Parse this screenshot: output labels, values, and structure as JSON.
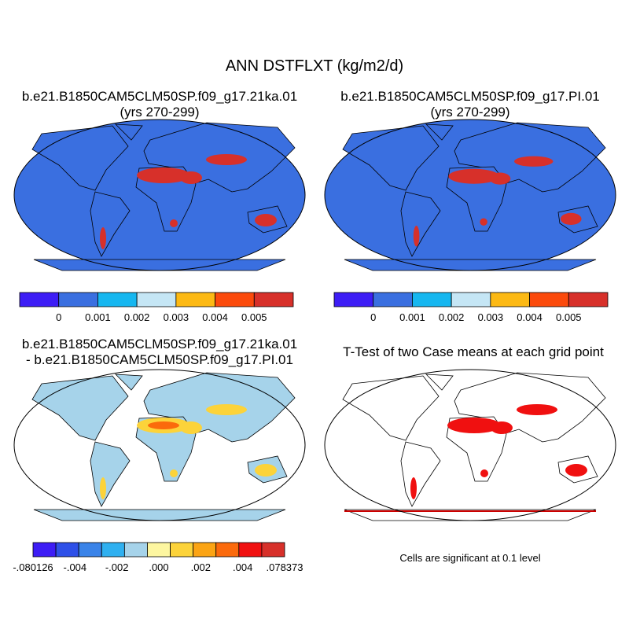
{
  "title": "ANN DSTFLXT (kg/m2/d)",
  "panels": [
    {
      "title": [
        "b.e21.B1850CAM5CLM50SP.f09_g17.21ka.01",
        "(yrs 270-299)"
      ]
    },
    {
      "title": [
        "b.e21.B1850CAM5CLM50SP.f09_g17.PI.01",
        "(yrs 270-299)"
      ]
    },
    {
      "title": [
        "b.e21.B1850CAM5CLM50SP.f09_g17.21ka.01",
        "- b.e21.B1850CAM5CLM50SP.f09_g17.PI.01"
      ]
    },
    {
      "title": [
        "T-Test of two Case means at each grid point"
      ],
      "note": "Cells are significant at 0.1 level"
    }
  ],
  "colorbars": [
    {
      "colors": [
        "#3d1df5",
        "#3a6fe0",
        "#16b7f0",
        "#c5e6f5",
        "#fcb914",
        "#fb4a0c",
        "#d7302a"
      ],
      "labels": [
        "0",
        "0.001",
        "0.002",
        "0.003",
        "0.004",
        "0.005"
      ]
    },
    {
      "colors": [
        "#3d1df5",
        "#3a6fe0",
        "#16b7f0",
        "#c5e6f5",
        "#fcb914",
        "#fb4a0c",
        "#d7302a"
      ],
      "labels": [
        "0",
        "0.001",
        "0.002",
        "0.003",
        "0.004",
        "0.005"
      ]
    },
    {
      "colors": [
        "#3d1df5",
        "#2e50e8",
        "#3a83e8",
        "#2fb0f0",
        "#a6d3ea",
        "#fdf6a0",
        "#fcd33a",
        "#fba414",
        "#fb6a0c",
        "#f01010",
        "#d7302a"
      ],
      "labels": [
        "-.080126",
        "-.004",
        "-.002",
        ".000",
        ".002",
        ".004",
        ".078373"
      ]
    }
  ]
}
